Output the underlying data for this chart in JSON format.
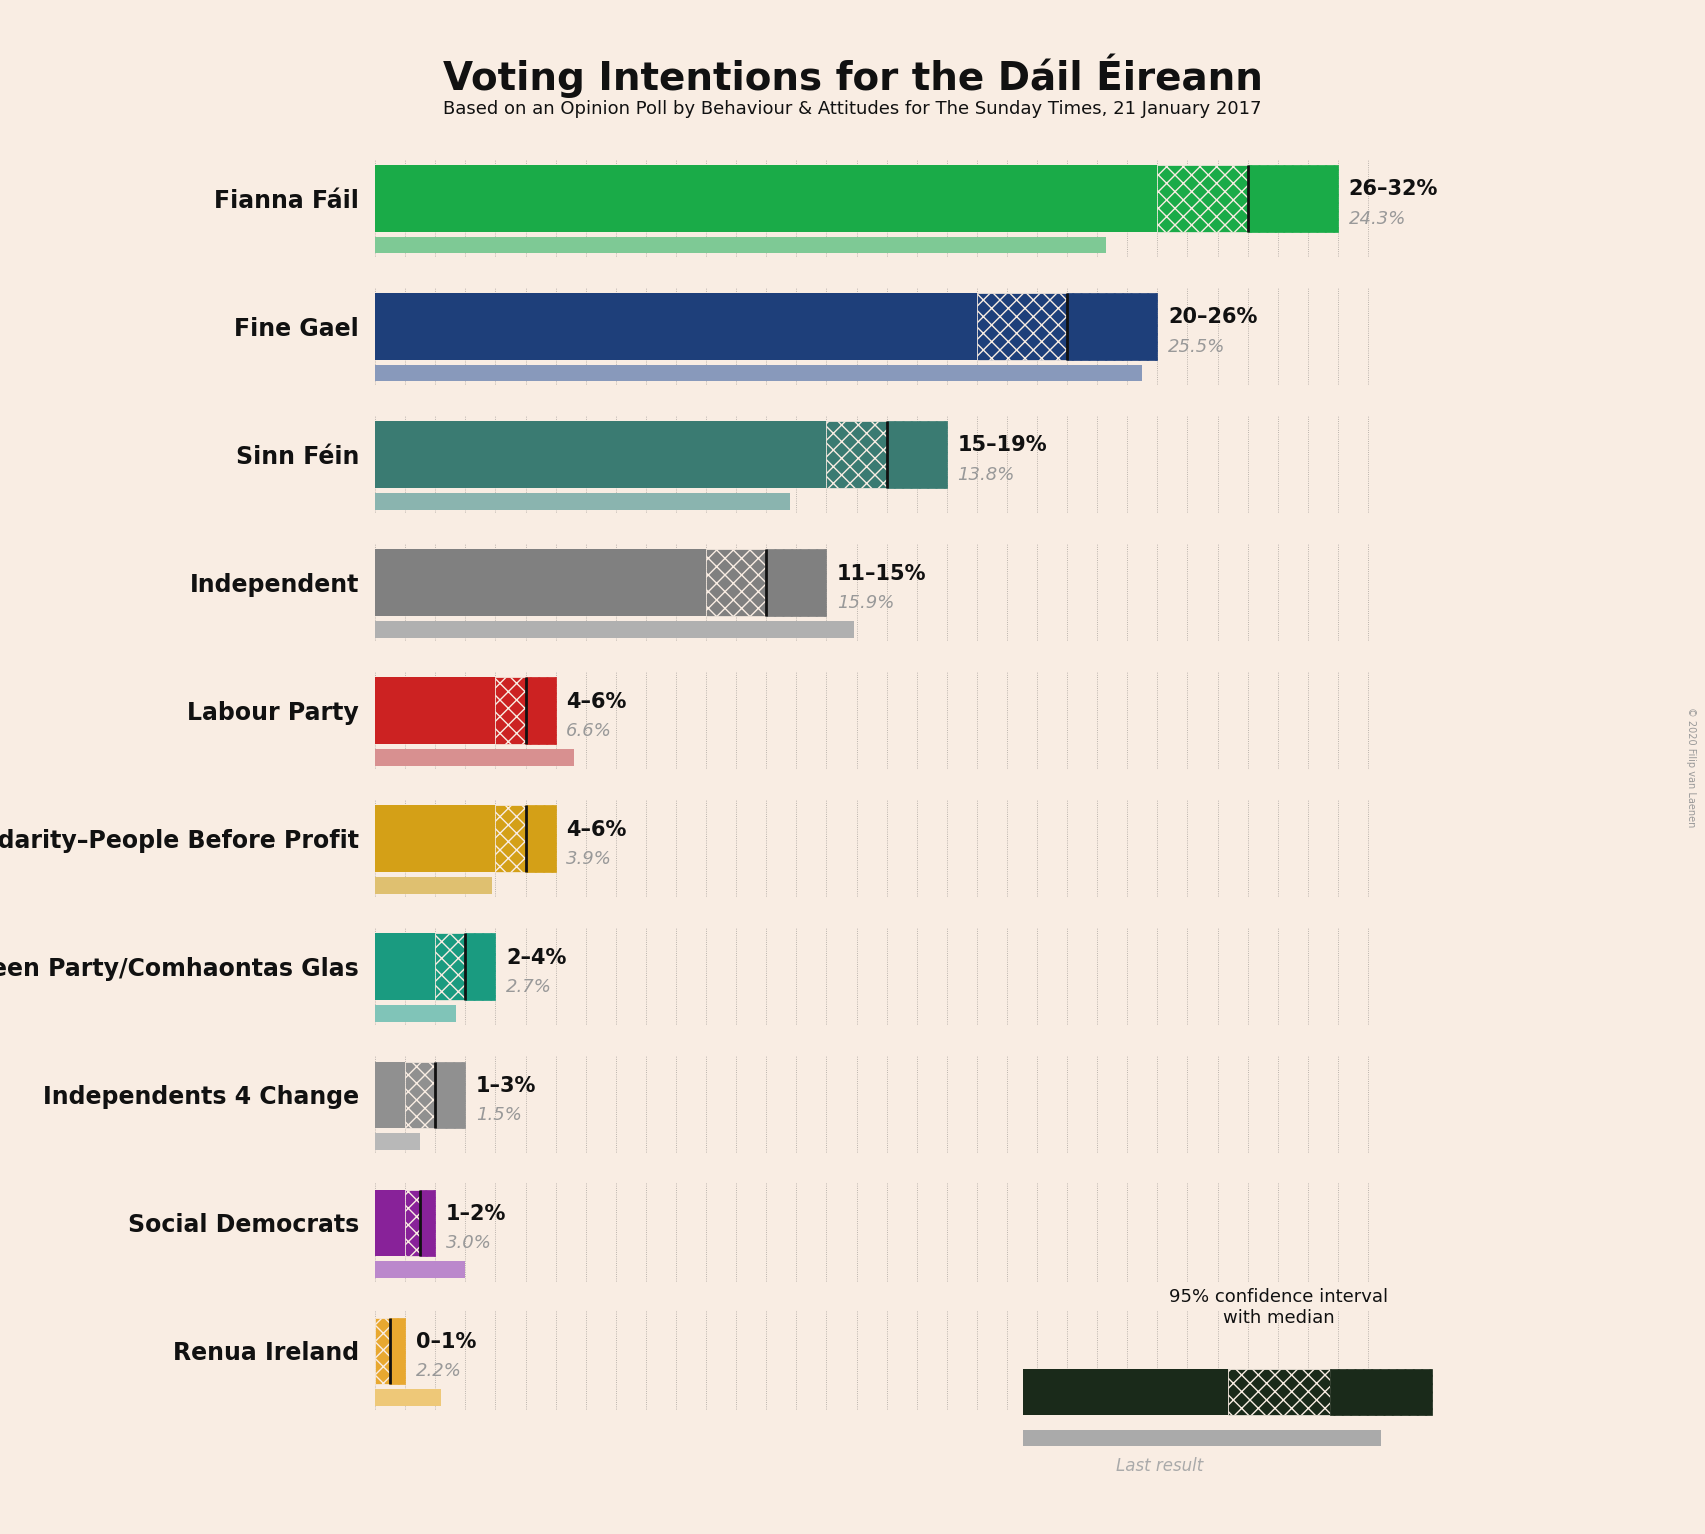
{
  "title": "Voting Intentions for the Dáil Éireann",
  "subtitle": "Based on an Opinion Poll by Behaviour & Attitudes for The Sunday Times, 21 January 2017",
  "copyright": "© 2020 Filip van Laenen",
  "background_color": "#f9ede3",
  "parties": [
    {
      "name": "Fianna Fáil",
      "low": 26,
      "high": 32,
      "median": 29,
      "last_result": 24.3,
      "color": "#1aab48",
      "color_light": "#7ec995"
    },
    {
      "name": "Fine Gael",
      "low": 20,
      "high": 26,
      "median": 23,
      "last_result": 25.5,
      "color": "#1e3f7a",
      "color_light": "#8899bb"
    },
    {
      "name": "Sinn Féin",
      "low": 15,
      "high": 19,
      "median": 17,
      "last_result": 13.8,
      "color": "#3a7b72",
      "color_light": "#8ab4af"
    },
    {
      "name": "Independent",
      "low": 11,
      "high": 15,
      "median": 13,
      "last_result": 15.9,
      "color": "#808080",
      "color_light": "#b0b0b0"
    },
    {
      "name": "Labour Party",
      "low": 4,
      "high": 6,
      "median": 5,
      "last_result": 6.6,
      "color": "#cc2222",
      "color_light": "#d89090"
    },
    {
      "name": "Solidarity–People Before Profit",
      "low": 4,
      "high": 6,
      "median": 5,
      "last_result": 3.9,
      "color": "#d4a017",
      "color_light": "#dfc070"
    },
    {
      "name": "Green Party/Comhaontas Glas",
      "low": 2,
      "high": 4,
      "median": 3,
      "last_result": 2.7,
      "color": "#1a9b80",
      "color_light": "#80c4b8"
    },
    {
      "name": "Independents 4 Change",
      "low": 1,
      "high": 3,
      "median": 2,
      "last_result": 1.5,
      "color": "#909090",
      "color_light": "#b8b8b8"
    },
    {
      "name": "Social Democrats",
      "low": 1,
      "high": 2,
      "median": 1.5,
      "last_result": 3.0,
      "color": "#882299",
      "color_light": "#bb88cc"
    },
    {
      "name": "Renua Ireland",
      "low": 0,
      "high": 1,
      "median": 0.5,
      "last_result": 2.2,
      "color": "#e8a830",
      "color_light": "#eec878"
    }
  ],
  "xlim": [
    0,
    34
  ],
  "label_range": [
    "26–32%",
    "20–26%",
    "15–19%",
    "11–15%",
    "4–6%",
    "4–6%",
    "2–4%",
    "1–3%",
    "1–2%",
    "0–1%"
  ],
  "label_last": [
    "24.3%",
    "25.5%",
    "13.8%",
    "15.9%",
    "6.6%",
    "3.9%",
    "2.7%",
    "1.5%",
    "3.0%",
    "2.2%"
  ]
}
